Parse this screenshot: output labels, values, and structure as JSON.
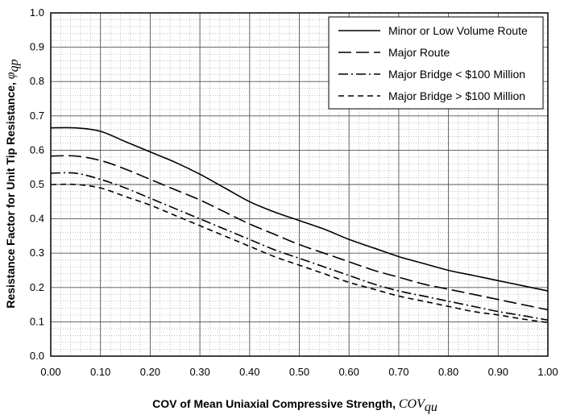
{
  "chart_data": {
    "type": "line",
    "xlabel": "COV of Mean Uniaxial Compressive Strength, ",
    "xlabel_symbol": "COV",
    "xlabel_subscript": "qu",
    "ylabel": "Resistance Factor for Unit Tip Resistance, ",
    "ylabel_symbol": "φ",
    "ylabel_subscript": "qp",
    "xlim": [
      0,
      1
    ],
    "ylim": [
      0,
      1
    ],
    "x_ticks": [
      "0.00",
      "0.10",
      "0.20",
      "0.30",
      "0.40",
      "0.50",
      "0.60",
      "0.70",
      "0.80",
      "0.90",
      "1.00"
    ],
    "y_ticks": [
      "0.0",
      "0.1",
      "0.2",
      "0.3",
      "0.4",
      "0.5",
      "0.6",
      "0.7",
      "0.8",
      "0.9",
      "1.0"
    ],
    "grid": true,
    "legend_position": "top-right",
    "x": [
      0.0,
      0.05,
      0.1,
      0.15,
      0.2,
      0.25,
      0.3,
      0.35,
      0.4,
      0.45,
      0.5,
      0.55,
      0.6,
      0.65,
      0.7,
      0.75,
      0.8,
      0.85,
      0.9,
      0.95,
      1.0
    ],
    "series": [
      {
        "name": "Minor or Low Volume Route",
        "dash": "solid",
        "values": [
          0.665,
          0.665,
          0.655,
          0.625,
          0.595,
          0.565,
          0.53,
          0.49,
          0.45,
          0.42,
          0.395,
          0.37,
          0.34,
          0.315,
          0.29,
          0.27,
          0.25,
          0.235,
          0.22,
          0.205,
          0.19
        ]
      },
      {
        "name": "Major Route",
        "dash": "long-dash",
        "values": [
          0.583,
          0.583,
          0.57,
          0.545,
          0.515,
          0.485,
          0.455,
          0.42,
          0.385,
          0.355,
          0.325,
          0.3,
          0.275,
          0.25,
          0.23,
          0.21,
          0.195,
          0.18,
          0.165,
          0.15,
          0.135
        ]
      },
      {
        "name": "Major Bridge < $100 Million",
        "dash": "dash-dot",
        "values": [
          0.533,
          0.533,
          0.515,
          0.49,
          0.46,
          0.43,
          0.4,
          0.37,
          0.34,
          0.31,
          0.285,
          0.26,
          0.235,
          0.21,
          0.19,
          0.175,
          0.16,
          0.145,
          0.13,
          0.118,
          0.105
        ]
      },
      {
        "name": "Major Bridge > $100 Million",
        "dash": "short-dash",
        "values": [
          0.5,
          0.5,
          0.49,
          0.465,
          0.44,
          0.41,
          0.38,
          0.35,
          0.32,
          0.29,
          0.265,
          0.24,
          0.215,
          0.195,
          0.175,
          0.16,
          0.145,
          0.13,
          0.12,
          0.108,
          0.098
        ]
      }
    ]
  }
}
